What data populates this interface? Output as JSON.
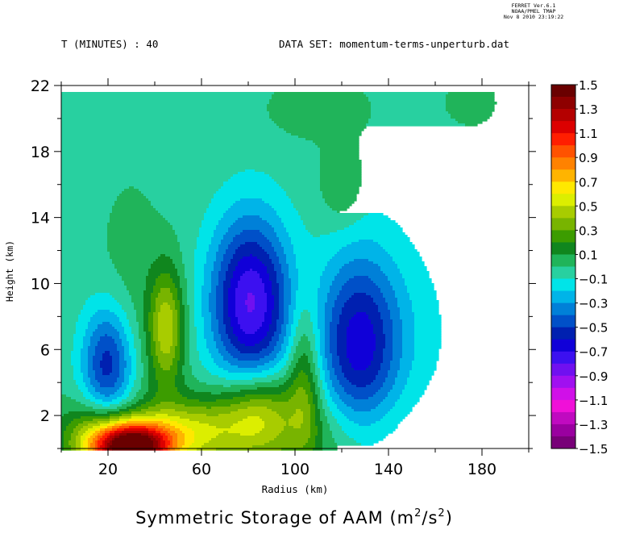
{
  "header": {
    "time_label": "T (MINUTES) : 40",
    "dataset_label": "DATA SET: momentum-terms-unperturb.dat",
    "stamp_lines": [
      "FERRET Ver.6.1",
      "NOAA/PMEL TMAP",
      "Nov 8 2010 23:19:22"
    ]
  },
  "chart_data": {
    "type": "heatmap",
    "title": "Symmetric Storage of AAM (m",
    "title_sup": "2",
    "title_mid": "/s",
    "title_sup2": "2",
    "title_end": ")",
    "xlabel": "Radius (km)",
    "ylabel": "Height (km)",
    "xlim": [
      0,
      200
    ],
    "ylim": [
      0,
      22
    ],
    "field_top": 21.6,
    "x_ticks": [
      20,
      60,
      100,
      140,
      180
    ],
    "y_ticks": [
      2,
      6,
      10,
      14,
      18,
      22
    ],
    "colorbar": {
      "levels": [
        1.5,
        1.4,
        1.3,
        1.2,
        1.1,
        1.0,
        0.9,
        0.8,
        0.7,
        0.6,
        0.5,
        0.4,
        0.3,
        0.2,
        0.1,
        0.0,
        -0.1,
        -0.2,
        -0.3,
        -0.4,
        -0.5,
        -0.6,
        -0.7,
        -0.8,
        -0.9,
        -1.0,
        -1.1,
        -1.2,
        -1.3,
        -1.4,
        -1.5
      ],
      "labels": [
        "1.5",
        "1.3",
        "1.1",
        "0.9",
        "0.7",
        "0.5",
        "0.3",
        "0.1",
        "−0.1",
        "−0.3",
        "−0.5",
        "−0.7",
        "−0.9",
        "−1.1",
        "−1.3",
        "−1.5"
      ],
      "colors": [
        "#6a0000",
        "#8e0000",
        "#b40000",
        "#dc0000",
        "#ff1e00",
        "#ff5200",
        "#ff8200",
        "#ffb400",
        "#ffe800",
        "#dcee00",
        "#a8cc00",
        "#78b400",
        "#3c9c00",
        "#10861e",
        "#20b45a",
        "#28d0a0",
        "#00e4e8",
        "#00b4e8",
        "#0080d8",
        "#0050c8",
        "#0020b0",
        "#1000d8",
        "#3c10f0",
        "#7010f0",
        "#a010f0",
        "#d010e8",
        "#f010d8",
        "#c00ac0",
        "#9a00a0",
        "#780078"
      ]
    },
    "features": [
      {
        "name": "low-cyclone-left",
        "x": 20,
        "y": 5,
        "amplitude": -0.55
      },
      {
        "name": "low-cyclone-center",
        "x": 81,
        "y": 8.8,
        "amplitude": -0.78
      },
      {
        "name": "low-cyclone-right",
        "x": 127,
        "y": 6,
        "amplitude": -0.55
      },
      {
        "name": "high-near-surface",
        "x": 30,
        "y": 0.2,
        "amplitude": 1.5
      },
      {
        "name": "high-mid-level",
        "x": 45,
        "y": 7.2,
        "amplitude": 0.5
      },
      {
        "name": "high-lower-center",
        "x": 85,
        "y": 2.5,
        "amplitude": 0.45
      },
      {
        "name": "high-upper-right",
        "x": 120,
        "y": 15.8,
        "amplitude": 0.1
      }
    ],
    "grid": false
  }
}
